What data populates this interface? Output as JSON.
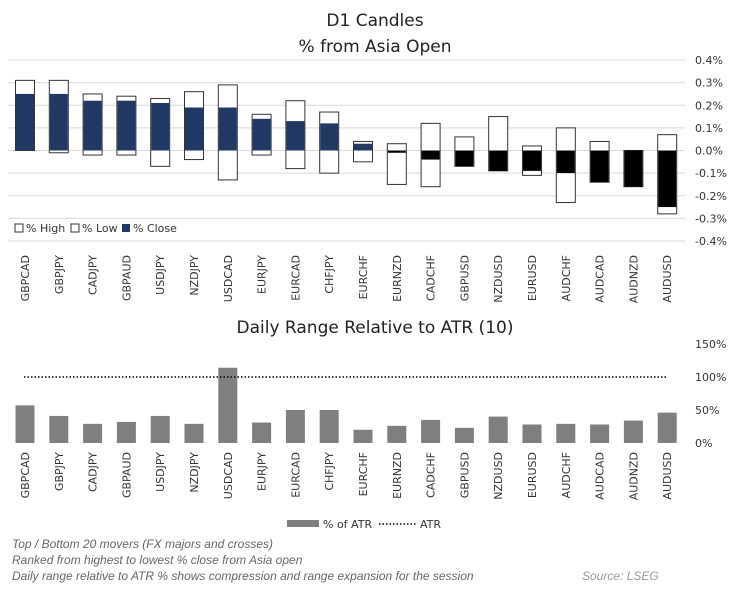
{
  "chart_data": [
    {
      "type": "candlestick",
      "title": "D1 Candles",
      "subtitle": "% from Asia Open",
      "categories": [
        "GBPCAD",
        "GBPJPY",
        "CADJPY",
        "GBPAUD",
        "USDJPY",
        "NZDJPY",
        "USDCAD",
        "EURJPY",
        "EURCAD",
        "CHFJPY",
        "EURCHF",
        "EURNZD",
        "CADCHF",
        "GBPUSD",
        "NZDUSD",
        "EURUSD",
        "AUDCHF",
        "AUDCAD",
        "AUDNZD",
        "AUDUSD"
      ],
      "series": [
        {
          "name": "% High",
          "values": [
            0.31,
            0.31,
            0.25,
            0.24,
            0.23,
            0.26,
            0.29,
            0.16,
            0.22,
            0.17,
            0.04,
            0.03,
            0.12,
            0.06,
            0.15,
            0.02,
            0.1,
            0.04,
            0.0,
            0.07
          ]
        },
        {
          "name": "% Low",
          "values": [
            0.0,
            -0.01,
            -0.02,
            -0.02,
            -0.07,
            -0.04,
            -0.13,
            -0.02,
            -0.08,
            -0.1,
            -0.05,
            -0.15,
            -0.16,
            -0.07,
            -0.09,
            -0.11,
            -0.23,
            -0.14,
            -0.16,
            -0.28
          ]
        },
        {
          "name": "% Close",
          "values": [
            0.25,
            0.25,
            0.22,
            0.22,
            0.21,
            0.19,
            0.19,
            0.14,
            0.13,
            0.12,
            0.03,
            -0.01,
            -0.04,
            -0.07,
            -0.09,
            -0.09,
            -0.1,
            -0.14,
            -0.16,
            -0.25
          ]
        }
      ],
      "yticks": [
        "0.4%",
        "0.3%",
        "0.2%",
        "0.1%",
        "0.0%",
        "-0.1%",
        "-0.2%",
        "-0.3%",
        "-0.4%"
      ],
      "ylim": [
        -0.4,
        0.4
      ],
      "grid": true,
      "legend_position": "bottom-left",
      "colors": {
        "up": "#1f3864",
        "down": "#000000",
        "range": "#ffffff"
      }
    },
    {
      "type": "bar",
      "title": "Daily Range Relative to ATR (10)",
      "categories": [
        "GBPCAD",
        "GBPJPY",
        "CADJPY",
        "GBPAUD",
        "USDJPY",
        "NZDJPY",
        "USDCAD",
        "EURJPY",
        "EURCAD",
        "CHFJPY",
        "EURCHF",
        "EURNZD",
        "CADCHF",
        "GBPUSD",
        "NZDUSD",
        "EURUSD",
        "AUDCHF",
        "AUDCAD",
        "AUDNZD",
        "AUDUSD"
      ],
      "series": [
        {
          "name": "% of ATR",
          "values": [
            57,
            41,
            29,
            32,
            41,
            29,
            114,
            31,
            50,
            50,
            20,
            26,
            35,
            23,
            40,
            28,
            29,
            28,
            34,
            46
          ]
        },
        {
          "name": "ATR",
          "values": [
            100,
            100,
            100,
            100,
            100,
            100,
            100,
            100,
            100,
            100,
            100,
            100,
            100,
            100,
            100,
            100,
            100,
            100,
            100,
            100
          ]
        }
      ],
      "yticks": [
        "150%",
        "100%",
        "50%",
        "0%"
      ],
      "ylim": [
        0,
        150
      ],
      "grid": false,
      "legend_position": "bottom",
      "colors": {
        "bar": "#7f7f7f",
        "atr_line": "#000000"
      }
    }
  ],
  "notes": [
    "Top / Bottom 20 movers (FX majors and crosses)",
    "Ranked from highest to lowest % close from Asia open",
    "Daily range relative to ATR % shows compression and range expansion for the session"
  ],
  "source": "Source: LSEG"
}
